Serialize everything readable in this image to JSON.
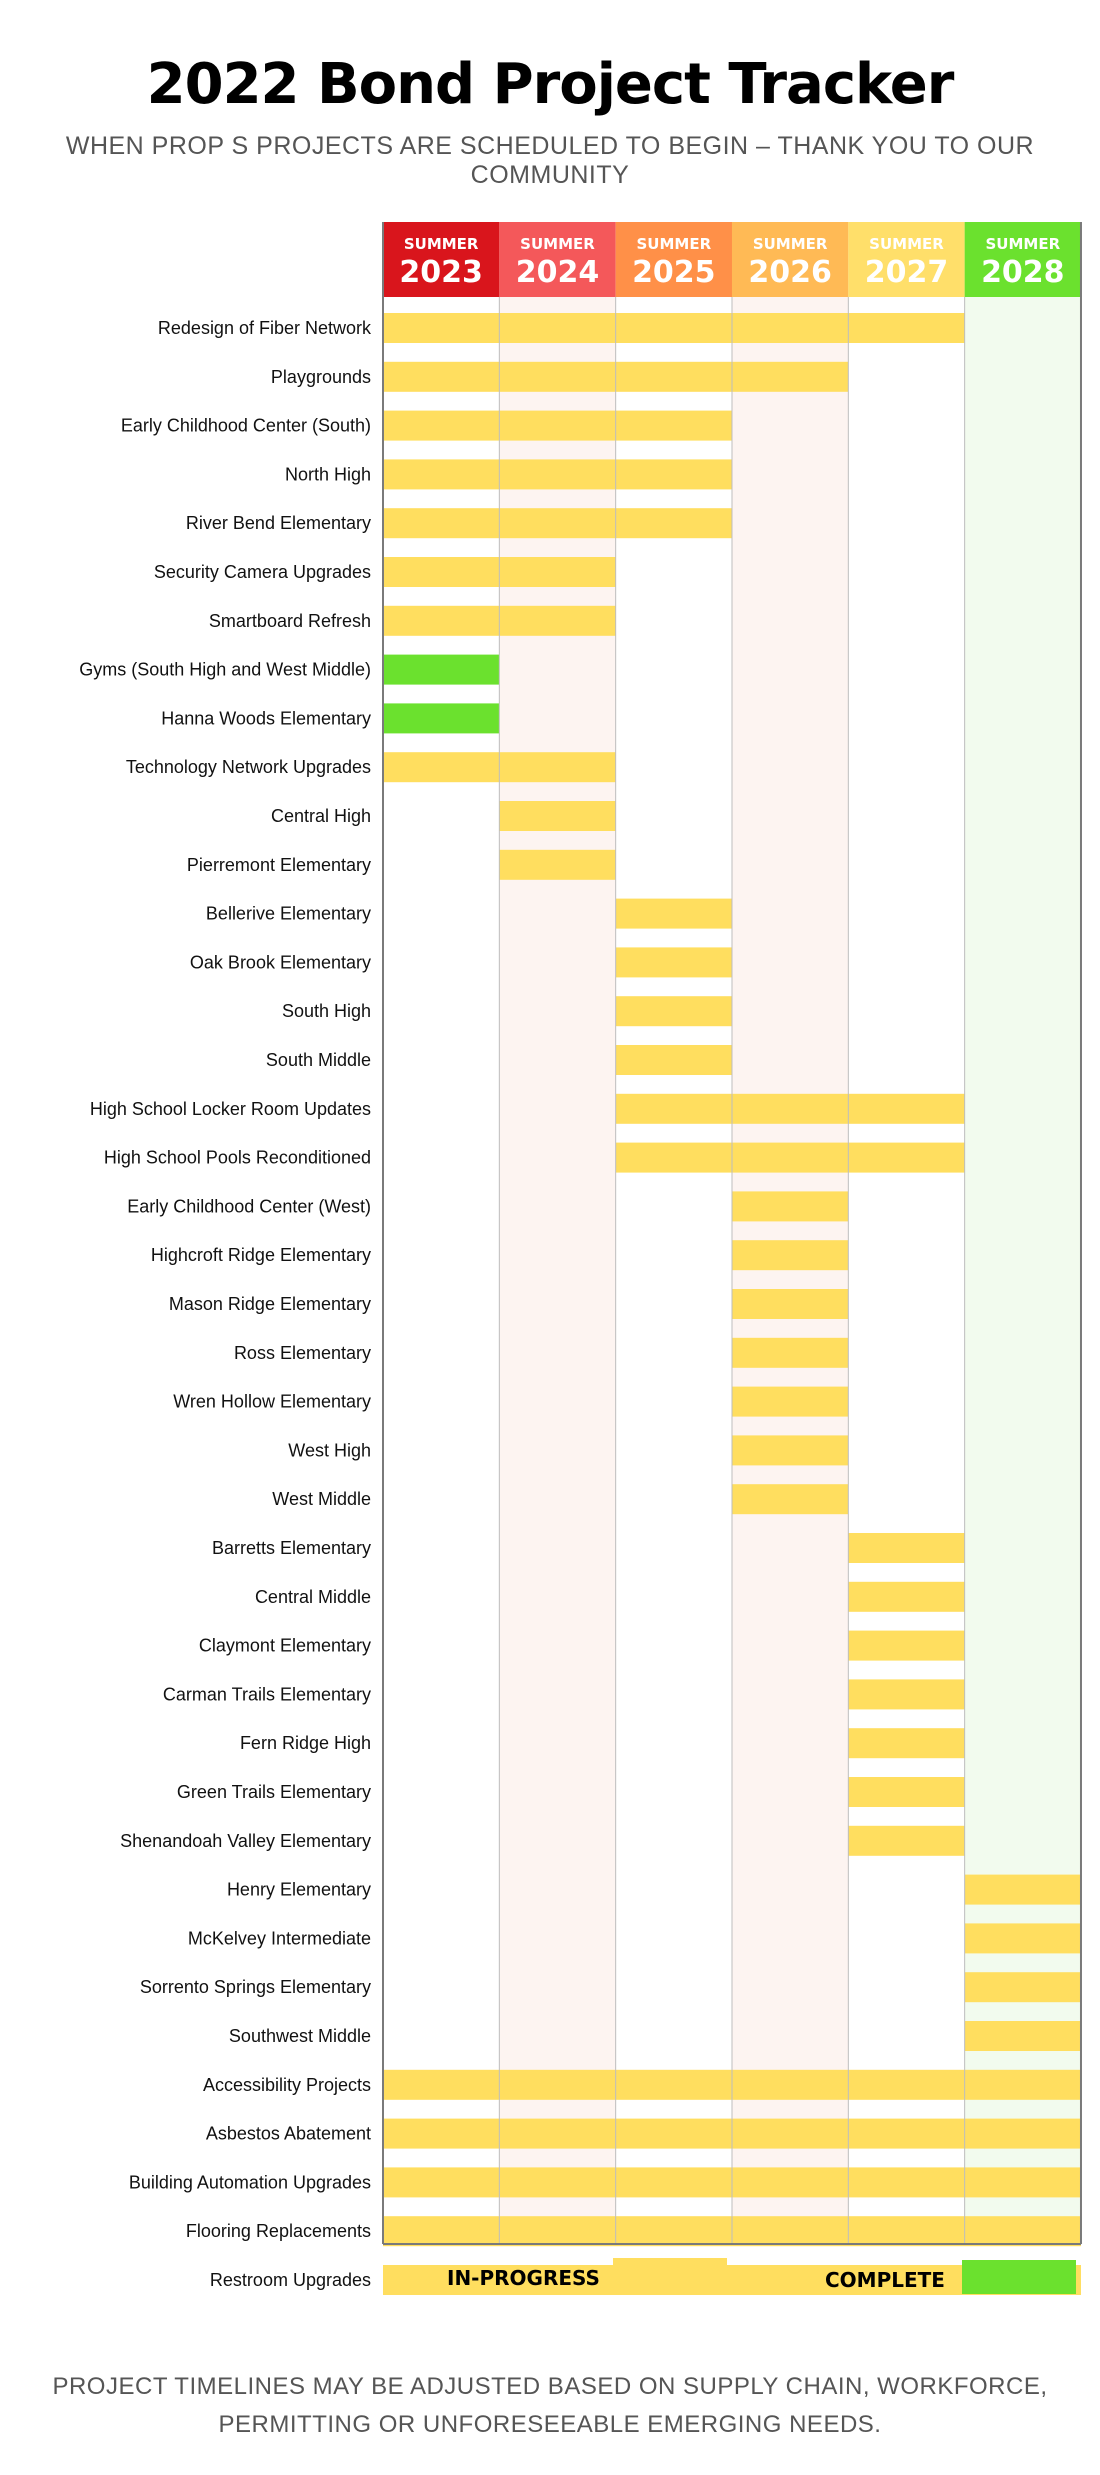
{
  "header": {
    "title": "2022 Bond Project Tracker",
    "subtitle": "WHEN PROP S PROJECTS ARE SCHEDULED TO BEGIN – THANK YOU TO OUR COMMUNITY"
  },
  "colors": {
    "in_progress": "#FFDE5F",
    "complete": "#6BE12E",
    "columns": [
      "#D9151C",
      "#F4585A",
      "#FF9048",
      "#FFBA55",
      "#FFDF6A",
      "#6BE12E"
    ],
    "column_tints": [
      "#ffffff",
      "#FDF4F1",
      "#ffffff",
      "#FDF4F1",
      "#ffffff",
      "#F2FBEE"
    ]
  },
  "chart_data": {
    "type": "gantt",
    "columns": [
      {
        "top": "SUMMER",
        "year": "2023"
      },
      {
        "top": "SUMMER",
        "year": "2024"
      },
      {
        "top": "SUMMER",
        "year": "2025"
      },
      {
        "top": "SUMMER",
        "year": "2026"
      },
      {
        "top": "SUMMER",
        "year": "2027"
      },
      {
        "top": "SUMMER",
        "year": "2028"
      }
    ],
    "tasks": [
      {
        "name": "Redesign of Fiber Network",
        "start": 2023,
        "end": 2028,
        "status": "in-progress"
      },
      {
        "name": "Playgrounds",
        "start": 2023,
        "end": 2027,
        "status": "in-progress"
      },
      {
        "name": "Early Childhood Center (South)",
        "start": 2023,
        "end": 2026,
        "status": "in-progress"
      },
      {
        "name": "North High",
        "start": 2023,
        "end": 2026,
        "status": "in-progress"
      },
      {
        "name": "River Bend Elementary",
        "start": 2023,
        "end": 2026,
        "status": "in-progress"
      },
      {
        "name": "Security Camera Upgrades",
        "start": 2023,
        "end": 2025,
        "status": "in-progress"
      },
      {
        "name": "Smartboard Refresh",
        "start": 2023,
        "end": 2025,
        "status": "in-progress"
      },
      {
        "name": "Gyms (South High and West Middle)",
        "start": 2023,
        "end": 2024,
        "status": "complete"
      },
      {
        "name": "Hanna Woods Elementary",
        "start": 2023,
        "end": 2024,
        "status": "complete"
      },
      {
        "name": "Technology Network Upgrades",
        "start": 2023,
        "end": 2025,
        "status": "in-progress"
      },
      {
        "name": "Central High",
        "start": 2024,
        "end": 2025,
        "status": "in-progress"
      },
      {
        "name": "Pierremont Elementary",
        "start": 2024,
        "end": 2025,
        "status": "in-progress"
      },
      {
        "name": "Bellerive Elementary",
        "start": 2025,
        "end": 2026,
        "status": "in-progress"
      },
      {
        "name": "Oak Brook Elementary",
        "start": 2025,
        "end": 2026,
        "status": "in-progress"
      },
      {
        "name": "South High",
        "start": 2025,
        "end": 2026,
        "status": "in-progress"
      },
      {
        "name": "South Middle",
        "start": 2025,
        "end": 2026,
        "status": "in-progress"
      },
      {
        "name": "High School Locker Room Updates",
        "start": 2025,
        "end": 2028,
        "status": "in-progress"
      },
      {
        "name": "High School Pools Reconditioned",
        "start": 2025,
        "end": 2028,
        "status": "in-progress"
      },
      {
        "name": "Early Childhood Center (West)",
        "start": 2026,
        "end": 2027,
        "status": "in-progress"
      },
      {
        "name": "Highcroft Ridge Elementary",
        "start": 2026,
        "end": 2027,
        "status": "in-progress"
      },
      {
        "name": "Mason Ridge Elementary",
        "start": 2026,
        "end": 2027,
        "status": "in-progress"
      },
      {
        "name": "Ross Elementary",
        "start": 2026,
        "end": 2027,
        "status": "in-progress"
      },
      {
        "name": "Wren Hollow Elementary",
        "start": 2026,
        "end": 2027,
        "status": "in-progress"
      },
      {
        "name": "West High",
        "start": 2026,
        "end": 2027,
        "status": "in-progress"
      },
      {
        "name": "West Middle",
        "start": 2026,
        "end": 2027,
        "status": "in-progress"
      },
      {
        "name": "Barretts Elementary",
        "start": 2027,
        "end": 2028,
        "status": "in-progress"
      },
      {
        "name": "Central Middle",
        "start": 2027,
        "end": 2028,
        "status": "in-progress"
      },
      {
        "name": "Claymont Elementary",
        "start": 2027,
        "end": 2028,
        "status": "in-progress"
      },
      {
        "name": "Carman Trails Elementary",
        "start": 2027,
        "end": 2028,
        "status": "in-progress"
      },
      {
        "name": "Fern Ridge High",
        "start": 2027,
        "end": 2028,
        "status": "in-progress"
      },
      {
        "name": "Green Trails Elementary",
        "start": 2027,
        "end": 2028,
        "status": "in-progress"
      },
      {
        "name": "Shenandoah Valley Elementary",
        "start": 2027,
        "end": 2028,
        "status": "in-progress"
      },
      {
        "name": "Henry Elementary",
        "start": 2028,
        "end": 2029,
        "status": "in-progress"
      },
      {
        "name": "McKelvey Intermediate",
        "start": 2028,
        "end": 2029,
        "status": "in-progress"
      },
      {
        "name": "Sorrento Springs Elementary",
        "start": 2028,
        "end": 2029,
        "status": "in-progress"
      },
      {
        "name": "Southwest Middle",
        "start": 2028,
        "end": 2029,
        "status": "in-progress"
      },
      {
        "name": "Accessibility Projects",
        "start": 2023,
        "end": 2029,
        "status": "in-progress"
      },
      {
        "name": "Asbestos Abatement",
        "start": 2023,
        "end": 2029,
        "status": "in-progress"
      },
      {
        "name": "Building Automation Upgrades",
        "start": 2023,
        "end": 2029,
        "status": "in-progress"
      },
      {
        "name": "Flooring Replacements",
        "start": 2023,
        "end": 2029,
        "status": "in-progress"
      },
      {
        "name": "Restroom Upgrades",
        "start": 2023,
        "end": 2029,
        "status": "in-progress"
      }
    ]
  },
  "legend": {
    "in_progress_label": "IN-PROGRESS",
    "complete_label": "COMPLETE"
  },
  "footnote": {
    "line1": "PROJECT TIMELINES MAY BE ADJUSTED BASED ON SUPPLY CHAIN, WORKFORCE,",
    "line2": "PERMITTING OR UNFORESEEABLE EMERGING NEEDS."
  }
}
